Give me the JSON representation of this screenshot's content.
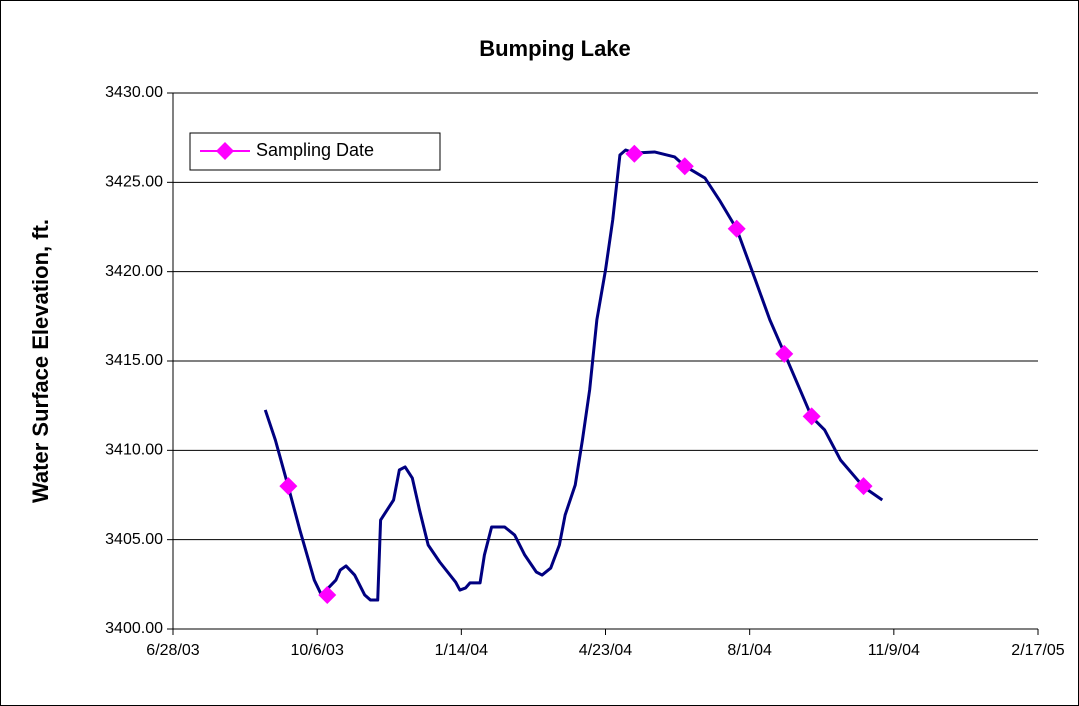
{
  "chart_data": {
    "type": "line",
    "title": "Bumping Lake",
    "y_label": "Water Surface Elevation, ft.",
    "xlim": [
      "6/28/03",
      "2/17/05"
    ],
    "xticks": [
      "6/28/03",
      "10/6/03",
      "1/14/04",
      "4/23/04",
      "8/1/04",
      "11/9/04",
      "2/17/05"
    ],
    "ylim": [
      3400,
      3430
    ],
    "yticks": [
      {
        "value": 3400,
        "label": "3400.00"
      },
      {
        "value": 3405,
        "label": "3405.00"
      },
      {
        "value": 3410,
        "label": "3410.00"
      },
      {
        "value": 3415,
        "label": "3415.00"
      },
      {
        "value": 3420,
        "label": "3420.00"
      },
      {
        "value": 3425,
        "label": "3425.00"
      },
      {
        "value": 3430,
        "label": "3430.00"
      }
    ],
    "grid": true,
    "legend": "top-left",
    "series": [
      {
        "color": "#000080",
        "x": [
          "8/31/03",
          "9/7/03",
          "9/16/03",
          "9/24/03",
          "10/4/03",
          "10/9/03",
          "10/19/03",
          "10/22/03",
          "10/26/03",
          "11/1/03",
          "11/8/03",
          "11/12/03",
          "11/17/03",
          "11/19/03",
          "11/28/03",
          "12/2/03",
          "12/6/03",
          "12/11/03",
          "12/16/03",
          "12/22/03",
          "12/30/03",
          "1/10/04",
          "1/13/04",
          "1/17/04",
          "1/20/04",
          "1/27/04",
          "1/30/04",
          "2/4/04",
          "2/13/04",
          "2/20/04",
          "2/27/04",
          "3/6/04",
          "3/10/04",
          "3/16/04",
          "3/22/04",
          "3/26/04",
          "4/2/04",
          "4/7/04",
          "4/12/04",
          "4/17/04",
          "4/23/04",
          "4/28/04",
          "5/3/04",
          "5/7/04",
          "5/13/04",
          "5/27/04",
          "6/10/04",
          "6/17/04",
          "7/1/04",
          "7/11/04",
          "7/23/04",
          "8/5/04",
          "8/15/04",
          "8/25/04",
          "9/5/04",
          "9/13/04",
          "9/22/04",
          "10/3/04",
          "10/19/04",
          "11/1/04"
        ],
        "values": [
          3412.26,
          3410.58,
          3407.95,
          3405.54,
          3402.74,
          3401.9,
          3402.74,
          3403.3,
          3403.53,
          3403.02,
          3401.9,
          3401.62,
          3401.62,
          3406.1,
          3407.22,
          3408.9,
          3409.07,
          3408.45,
          3406.66,
          3404.7,
          3403.75,
          3402.63,
          3402.18,
          3402.3,
          3402.58,
          3402.58,
          3404.14,
          3405.71,
          3405.71,
          3405.26,
          3404.14,
          3403.19,
          3403.02,
          3403.41,
          3404.7,
          3406.38,
          3408.06,
          3410.58,
          3413.38,
          3417.3,
          3420.09,
          3422.89,
          3426.53,
          3426.81,
          3426.64,
          3426.7,
          3426.42,
          3425.91,
          3425.24,
          3424.01,
          3422.39,
          3419.53,
          3417.3,
          3415.45,
          3413.38,
          3411.87,
          3411.14,
          3409.46,
          3407.95,
          3407.22
        ]
      },
      {
        "name": "Sampling Date",
        "color": "#ff00ff",
        "marker": "diamond",
        "x": [
          "9/16/03",
          "10/13/03",
          "5/13/04",
          "6/17/04",
          "7/23/04",
          "8/25/04",
          "9/13/04",
          "10/19/04"
        ],
        "values": [
          3408.0,
          3401.9,
          3426.6,
          3425.9,
          3422.4,
          3415.4,
          3411.9,
          3408.0
        ]
      }
    ]
  }
}
